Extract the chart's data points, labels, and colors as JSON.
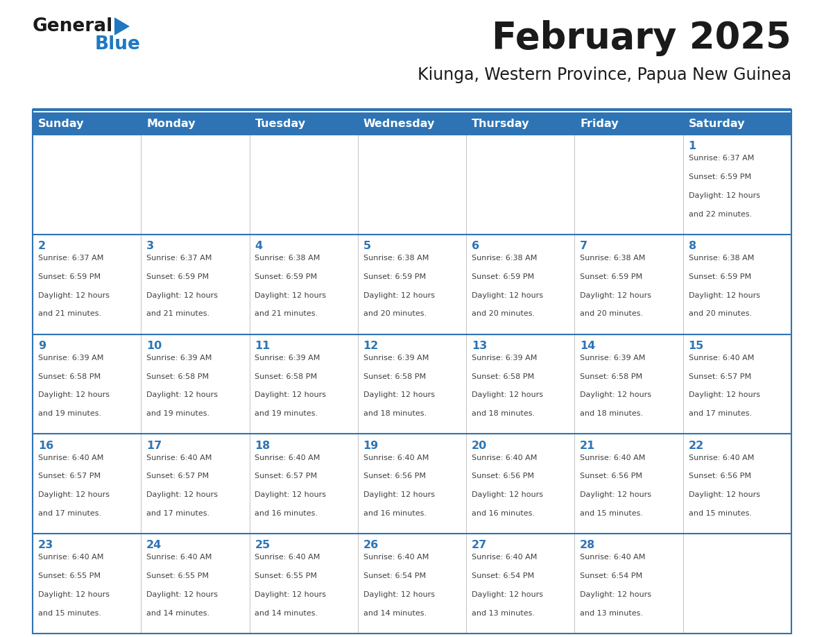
{
  "title": "February 2025",
  "subtitle": "Kiunga, Western Province, Papua New Guinea",
  "days_of_week": [
    "Sunday",
    "Monday",
    "Tuesday",
    "Wednesday",
    "Thursday",
    "Friday",
    "Saturday"
  ],
  "header_bg": "#2E74B5",
  "header_text": "#FFFFFF",
  "cell_bg_light": "#FFFFFF",
  "separator_color": "#2E74B5",
  "day_num_color": "#2E74B5",
  "info_text_color": "#404040",
  "logo_general_color": "#1A1A1A",
  "logo_blue_color": "#1F78C1",
  "calendar": [
    [
      null,
      null,
      null,
      null,
      null,
      null,
      1
    ],
    [
      2,
      3,
      4,
      5,
      6,
      7,
      8
    ],
    [
      9,
      10,
      11,
      12,
      13,
      14,
      15
    ],
    [
      16,
      17,
      18,
      19,
      20,
      21,
      22
    ],
    [
      23,
      24,
      25,
      26,
      27,
      28,
      null
    ]
  ],
  "sun_data": {
    "1": {
      "rise": "6:37 AM",
      "set": "6:59 PM",
      "hours": 12,
      "mins": 22
    },
    "2": {
      "rise": "6:37 AM",
      "set": "6:59 PM",
      "hours": 12,
      "mins": 21
    },
    "3": {
      "rise": "6:37 AM",
      "set": "6:59 PM",
      "hours": 12,
      "mins": 21
    },
    "4": {
      "rise": "6:38 AM",
      "set": "6:59 PM",
      "hours": 12,
      "mins": 21
    },
    "5": {
      "rise": "6:38 AM",
      "set": "6:59 PM",
      "hours": 12,
      "mins": 20
    },
    "6": {
      "rise": "6:38 AM",
      "set": "6:59 PM",
      "hours": 12,
      "mins": 20
    },
    "7": {
      "rise": "6:38 AM",
      "set": "6:59 PM",
      "hours": 12,
      "mins": 20
    },
    "8": {
      "rise": "6:38 AM",
      "set": "6:59 PM",
      "hours": 12,
      "mins": 20
    },
    "9": {
      "rise": "6:39 AM",
      "set": "6:58 PM",
      "hours": 12,
      "mins": 19
    },
    "10": {
      "rise": "6:39 AM",
      "set": "6:58 PM",
      "hours": 12,
      "mins": 19
    },
    "11": {
      "rise": "6:39 AM",
      "set": "6:58 PM",
      "hours": 12,
      "mins": 19
    },
    "12": {
      "rise": "6:39 AM",
      "set": "6:58 PM",
      "hours": 12,
      "mins": 18
    },
    "13": {
      "rise": "6:39 AM",
      "set": "6:58 PM",
      "hours": 12,
      "mins": 18
    },
    "14": {
      "rise": "6:39 AM",
      "set": "6:58 PM",
      "hours": 12,
      "mins": 18
    },
    "15": {
      "rise": "6:40 AM",
      "set": "6:57 PM",
      "hours": 12,
      "mins": 17
    },
    "16": {
      "rise": "6:40 AM",
      "set": "6:57 PM",
      "hours": 12,
      "mins": 17
    },
    "17": {
      "rise": "6:40 AM",
      "set": "6:57 PM",
      "hours": 12,
      "mins": 17
    },
    "18": {
      "rise": "6:40 AM",
      "set": "6:57 PM",
      "hours": 12,
      "mins": 16
    },
    "19": {
      "rise": "6:40 AM",
      "set": "6:56 PM",
      "hours": 12,
      "mins": 16
    },
    "20": {
      "rise": "6:40 AM",
      "set": "6:56 PM",
      "hours": 12,
      "mins": 16
    },
    "21": {
      "rise": "6:40 AM",
      "set": "6:56 PM",
      "hours": 12,
      "mins": 15
    },
    "22": {
      "rise": "6:40 AM",
      "set": "6:56 PM",
      "hours": 12,
      "mins": 15
    },
    "23": {
      "rise": "6:40 AM",
      "set": "6:55 PM",
      "hours": 12,
      "mins": 15
    },
    "24": {
      "rise": "6:40 AM",
      "set": "6:55 PM",
      "hours": 12,
      "mins": 14
    },
    "25": {
      "rise": "6:40 AM",
      "set": "6:55 PM",
      "hours": 12,
      "mins": 14
    },
    "26": {
      "rise": "6:40 AM",
      "set": "6:54 PM",
      "hours": 12,
      "mins": 14
    },
    "27": {
      "rise": "6:40 AM",
      "set": "6:54 PM",
      "hours": 12,
      "mins": 13
    },
    "28": {
      "rise": "6:40 AM",
      "set": "6:54 PM",
      "hours": 12,
      "mins": 13
    }
  }
}
